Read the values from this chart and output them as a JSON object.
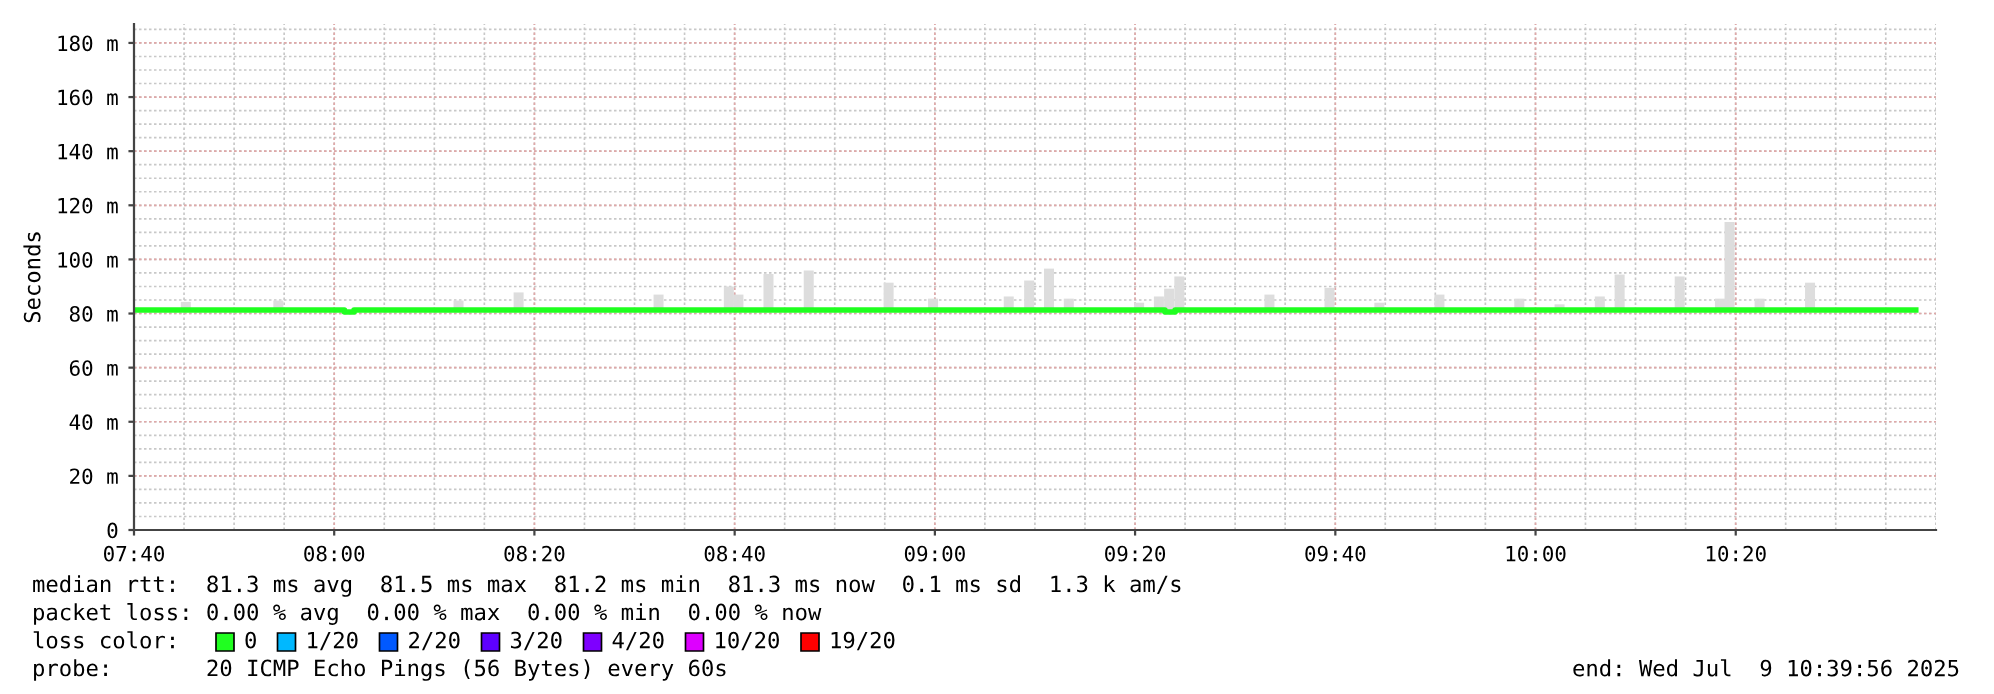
{
  "chart_data": {
    "type": "step",
    "ylabel": "Seconds",
    "xlim": [
      7.6667,
      10.6667
    ],
    "ylim": [
      0,
      187
    ],
    "xticks": [
      {
        "value": 7.6667,
        "label": "07:40"
      },
      {
        "value": 8.0,
        "label": "08:00"
      },
      {
        "value": 8.3333,
        "label": "08:20"
      },
      {
        "value": 8.6667,
        "label": "08:40"
      },
      {
        "value": 9.0,
        "label": "09:00"
      },
      {
        "value": 9.3333,
        "label": "09:20"
      },
      {
        "value": 9.6667,
        "label": "09:40"
      },
      {
        "value": 10.0,
        "label": "10:00"
      },
      {
        "value": 10.3333,
        "label": "10:20"
      }
    ],
    "yticks": [
      0,
      {
        "value": 20,
        "label": "20 m"
      },
      {
        "value": 40,
        "label": "40 m"
      },
      {
        "value": 60,
        "label": "60 m"
      },
      {
        "value": 80,
        "label": "80 m"
      },
      {
        "value": 100,
        "label": "100 m"
      },
      {
        "value": 120,
        "label": "120 m"
      },
      {
        "value": 140,
        "label": "140 m"
      },
      {
        "value": 160,
        "label": "160 m"
      },
      {
        "value": 180,
        "label": "180 m"
      }
    ],
    "grid": true,
    "series": [
      {
        "type": "bar",
        "color": "#dddddd",
        "x": [
          7.753,
          7.907,
          8.207,
          8.307,
          8.54,
          8.657,
          8.673,
          8.723,
          8.79,
          8.923,
          8.997,
          9.123,
          9.157,
          9.19,
          9.223,
          9.34,
          9.373,
          9.39,
          9.407,
          9.557,
          9.657,
          9.74,
          9.84,
          9.973,
          10.04,
          10.107,
          10.14,
          10.24,
          10.307,
          10.323,
          10.373,
          10.457
        ],
        "base": [
          81.3,
          81.3,
          81.3,
          81.3,
          81.3,
          81.3,
          81.3,
          81.3,
          81.3,
          81.3,
          81.3,
          81.3,
          81.3,
          81.3,
          81.3,
          81.3,
          81.3,
          81.3,
          81.3,
          81.3,
          81.3,
          81.3,
          81.3,
          81.3,
          81.3,
          81.3,
          81.3,
          81.3,
          81.3,
          81.3,
          81.3,
          81.3
        ],
        "values": [
          3.0,
          3.5,
          3.5,
          6.5,
          5.7,
          8.7,
          5.7,
          13.3,
          14.6,
          10.1,
          4.2,
          5.0,
          10.9,
          15.3,
          4.2,
          2.7,
          5.0,
          7.9,
          12.4,
          5.7,
          8.2,
          2.7,
          5.7,
          4.2,
          2.1,
          5.0,
          13.1,
          12.4,
          4.2,
          32.5,
          4.2,
          10.1
        ]
      },
      {
        "name": "0",
        "color": "#20ff20",
        "x": [
          7.6667,
          8.017,
          8.033,
          9.383,
          9.4,
          10.633
        ],
        "values": [
          81.3,
          80.6,
          81.3,
          80.6,
          81.3,
          81.3
        ]
      },
      {
        "name": "1/20",
        "color": "#00b8ff"
      },
      {
        "name": "2/20",
        "color": "#0059ff"
      },
      {
        "name": "3/20",
        "color": "#5e00ff"
      },
      {
        "name": "4/20",
        "color": "#7e00ff"
      },
      {
        "name": "10/20",
        "color": "#dd00ff"
      },
      {
        "name": "19/20",
        "color": "#ff0000"
      }
    ],
    "legend": "bottom",
    "annotations": [
      "median rtt:  81.3 ms avg  81.5 ms max  81.2 ms min  81.3 ms now  0.1 ms sd  1.3 k am/s",
      "packet loss: 0.00 % avg  0.00 % max  0.00 % min  0.00 % now",
      "loss color:",
      "probe:       20 ICMP Echo Pings (56 Bytes) every 60s",
      "end: Wed Jul  9 10:39:56 2025"
    ]
  }
}
